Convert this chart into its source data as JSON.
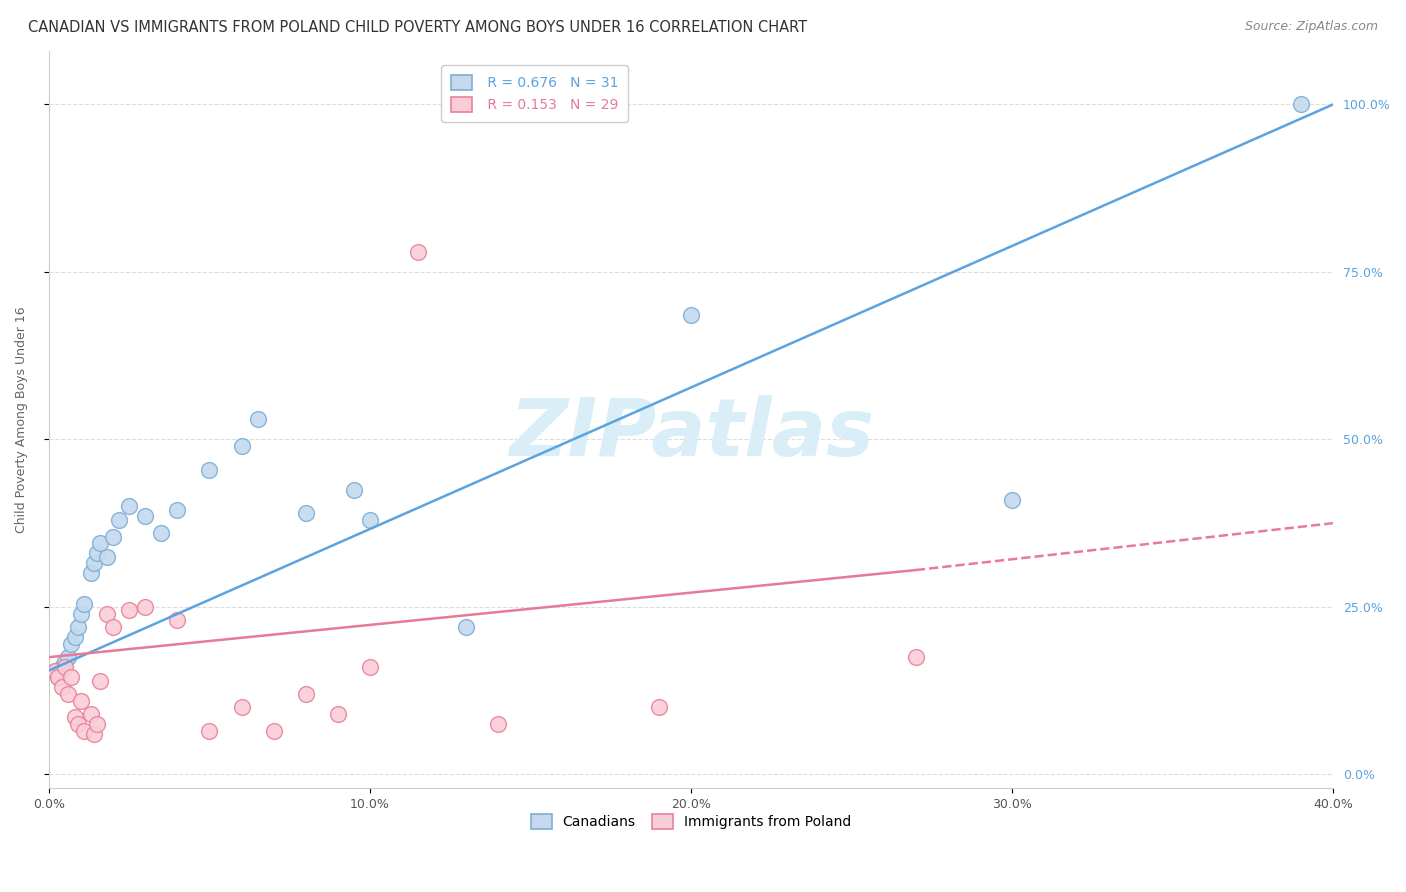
{
  "title": "CANADIAN VS IMMIGRANTS FROM POLAND CHILD POVERTY AMONG BOYS UNDER 16 CORRELATION CHART",
  "source": "Source: ZipAtlas.com",
  "ylabel": "Child Poverty Among Boys Under 16",
  "xlabel_ticks": [
    "0.0%",
    "10.0%",
    "20.0%",
    "30.0%",
    "40.0%"
  ],
  "xlabel_vals": [
    0.0,
    0.1,
    0.2,
    0.3,
    0.4
  ],
  "ylabel_ticks": [
    "0.0%",
    "25.0%",
    "50.0%",
    "75.0%",
    "100.0%"
  ],
  "ylabel_vals": [
    0.0,
    0.25,
    0.5,
    0.75,
    1.0
  ],
  "xlim": [
    0.0,
    0.4
  ],
  "ylim": [
    -0.02,
    1.08
  ],
  "canadian_R": 0.676,
  "canadian_N": 31,
  "poland_R": 0.153,
  "poland_N": 29,
  "canadian_color": "#c5d9ee",
  "canadian_edge_color": "#7bafd4",
  "poland_color": "#f9cdd8",
  "poland_edge_color": "#e8829a",
  "line_canadian_color": "#5ba3e0",
  "line_poland_color": "#e87a96",
  "watermark_color": "#daeef8",
  "background_color": "#ffffff",
  "grid_color": "#dddddd",
  "canadians_x": [
    0.002,
    0.003,
    0.004,
    0.005,
    0.006,
    0.007,
    0.008,
    0.009,
    0.01,
    0.011,
    0.013,
    0.014,
    0.015,
    0.016,
    0.018,
    0.02,
    0.022,
    0.025,
    0.03,
    0.035,
    0.04,
    0.05,
    0.06,
    0.065,
    0.08,
    0.095,
    0.1,
    0.13,
    0.2,
    0.3,
    0.39
  ],
  "canadians_y": [
    0.155,
    0.145,
    0.16,
    0.17,
    0.175,
    0.195,
    0.205,
    0.22,
    0.24,
    0.255,
    0.3,
    0.315,
    0.33,
    0.345,
    0.325,
    0.355,
    0.38,
    0.4,
    0.385,
    0.36,
    0.395,
    0.455,
    0.49,
    0.53,
    0.39,
    0.425,
    0.38,
    0.22,
    0.685,
    0.41,
    1.0
  ],
  "poland_x": [
    0.002,
    0.003,
    0.004,
    0.005,
    0.006,
    0.007,
    0.008,
    0.009,
    0.01,
    0.011,
    0.013,
    0.014,
    0.015,
    0.016,
    0.018,
    0.02,
    0.025,
    0.03,
    0.04,
    0.05,
    0.06,
    0.07,
    0.08,
    0.09,
    0.1,
    0.115,
    0.14,
    0.19,
    0.27
  ],
  "poland_y": [
    0.155,
    0.145,
    0.13,
    0.16,
    0.12,
    0.145,
    0.085,
    0.075,
    0.11,
    0.065,
    0.09,
    0.06,
    0.075,
    0.14,
    0.24,
    0.22,
    0.245,
    0.25,
    0.23,
    0.065,
    0.1,
    0.065,
    0.12,
    0.09,
    0.16,
    0.78,
    0.075,
    0.1,
    0.175
  ],
  "marker_size": 130,
  "title_fontsize": 10.5,
  "axis_fontsize": 9,
  "tick_fontsize": 9,
  "source_fontsize": 9
}
